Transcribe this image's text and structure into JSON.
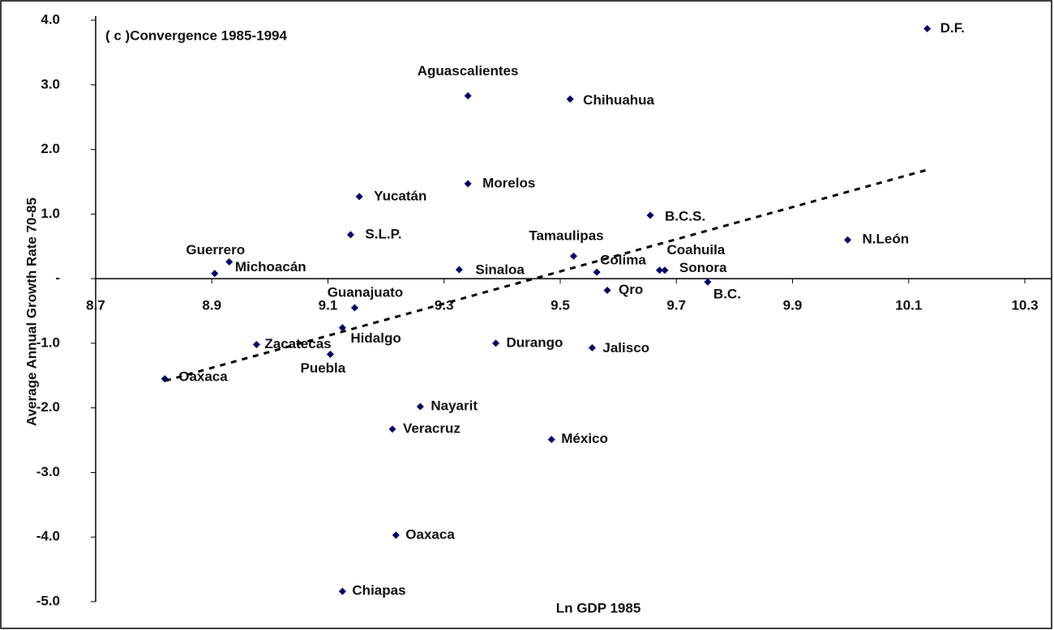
{
  "chart_data": {
    "type": "scatter",
    "title": "( c )Convergence 1985-1994",
    "x_label": "Ln GDP 1985",
    "y_label": "Average Annual Growth Rate 70-85",
    "color": "#000066",
    "labels": [
      "D.F.",
      "Aguascalientes",
      "Chihuahua",
      "Morelos",
      "Yucatán",
      "B.C.S.",
      "S.L.P.",
      "N.León",
      "Guerrero",
      "Michoacán",
      "Tamaulipas",
      "Sinaloa",
      "Colima",
      "Coahuila",
      "Sonora",
      "B.C.",
      "Qro",
      "Guanajuato",
      "Hidalgo",
      "Zacatecas",
      "Puebla",
      "Durango",
      "Jalisco",
      "Oaxaca",
      "Nayarit",
      "Veracruz",
      "México",
      "Oaxaca",
      "Chiapas"
    ],
    "x": [
      10.132,
      9.341,
      9.517,
      9.341,
      9.154,
      9.655,
      9.139,
      9.995,
      8.93,
      8.905,
      9.523,
      9.326,
      9.563,
      9.671,
      9.68,
      9.754,
      9.581,
      9.146,
      9.125,
      8.977,
      9.104,
      9.389,
      9.555,
      8.819,
      9.259,
      9.211,
      9.485,
      9.217,
      9.125
    ],
    "y": [
      3.87,
      2.83,
      2.78,
      1.47,
      1.27,
      0.98,
      0.68,
      0.6,
      0.26,
      0.08,
      0.35,
      0.14,
      0.1,
      0.13,
      0.13,
      -0.05,
      -0.18,
      -0.45,
      -0.76,
      -1.02,
      -1.17,
      -1.0,
      -1.07,
      -1.55,
      -1.98,
      -2.33,
      -2.49,
      -3.97,
      -4.84
    ],
    "trendline": {
      "x": [
        8.82,
        10.13
      ],
      "y": [
        -1.58,
        1.68
      ]
    },
    "xlim": [
      8.7,
      10.3
    ],
    "xticks": [
      8.7,
      8.9,
      9.1,
      9.3,
      9.5,
      9.7,
      9.9,
      10.1,
      10.3
    ],
    "ylim": [
      -5,
      4
    ],
    "yticks": [
      {
        "value": -5,
        "label": "-5.0"
      },
      {
        "value": -4,
        "label": "-4.0"
      },
      {
        "value": -3,
        "label": "-3.0"
      },
      {
        "value": -2,
        "label": "-2.0"
      },
      {
        "value": -1,
        "label": "-1.0"
      },
      {
        "value": 0,
        "label": "-"
      },
      {
        "value": 1,
        "label": "1.0"
      },
      {
        "value": 2,
        "label": "2.0"
      },
      {
        "value": 3,
        "label": "3.0"
      },
      {
        "value": 4,
        "label": "4.0"
      }
    ]
  }
}
